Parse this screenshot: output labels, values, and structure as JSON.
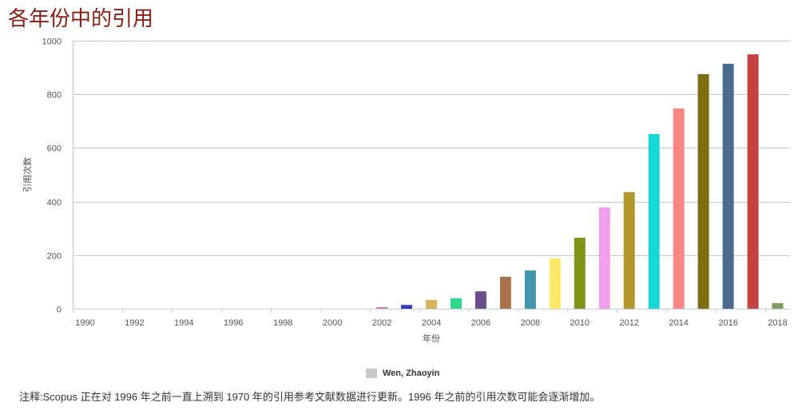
{
  "page": {
    "footnote": "注释:Scopus 正在对 1996 年之前一直上溯到 1970 年的引用参考文献数据进行更新。1996 年之前的引用次数可能会逐渐增加。"
  },
  "colors": {
    "title": "#8b1c12",
    "grid": "#c7c7c7",
    "axis": "#c0d0e0",
    "legend_swatch": "#c8c8c8"
  },
  "chart_data": {
    "type": "bar",
    "title": "各年份中的引用",
    "xlabel": "年份",
    "ylabel": "引用次数",
    "ylim": [
      0,
      1000
    ],
    "yticks": [
      0,
      200,
      400,
      600,
      800,
      1000
    ],
    "xticks": [
      "1990",
      "1992",
      "1994",
      "1996",
      "1998",
      "2000",
      "2002",
      "2004",
      "2006",
      "2008",
      "2010",
      "2012",
      "2014",
      "2016",
      "2018"
    ],
    "x": [
      1990,
      1991,
      1992,
      1993,
      1994,
      1995,
      1996,
      1997,
      1998,
      1999,
      2000,
      2001,
      2002,
      2003,
      2004,
      2005,
      2006,
      2007,
      2008,
      2009,
      2010,
      2011,
      2012,
      2013,
      2014,
      2015,
      2016,
      2017,
      2018
    ],
    "series": [
      {
        "name": "Wen, Zhaoyin",
        "values": [
          0,
          0,
          0,
          0,
          0,
          0,
          0,
          0,
          0,
          0,
          0,
          0,
          6,
          14,
          33,
          39,
          65,
          119,
          143,
          188,
          265,
          378,
          435,
          652,
          747,
          875,
          914,
          949,
          21
        ],
        "colors": [
          null,
          null,
          null,
          null,
          null,
          null,
          null,
          null,
          null,
          null,
          null,
          null,
          "#d57cbd",
          "#2f3bc4",
          "#dcae5a",
          "#31d88c",
          "#6b4c8c",
          "#a9724a",
          "#4496ac",
          "#fde86a",
          "#80941a",
          "#eea0ea",
          "#b1972b",
          "#18d6d4",
          "#fb8784",
          "#7e6e12",
          "#4a6a90",
          "#c3423f",
          "#7d9f5e"
        ]
      }
    ],
    "legend": "bottom-center",
    "grid": true
  }
}
